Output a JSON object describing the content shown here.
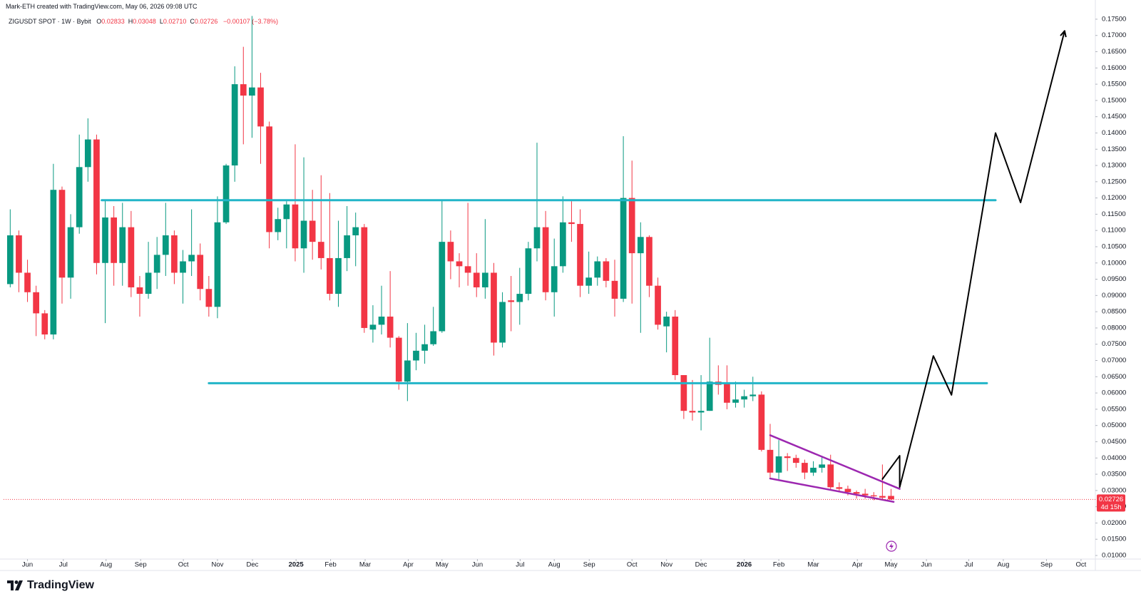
{
  "chart_data": {
    "type": "candlestick",
    "header": "Mark-ETH created with TradingView.com, May 06, 2026 09:08 UTC",
    "symbol": "ZIGUSDT SPOT · 1W · Bybit",
    "ohlc_legend": [
      {
        "key": "O",
        "value": "0.02833"
      },
      {
        "key": "H",
        "value": "0.03048"
      },
      {
        "key": "L",
        "value": "0.02710"
      },
      {
        "key": "C",
        "value": "0.02726"
      }
    ],
    "change": "−0.00107 (−3.78%)",
    "series": [
      {
        "up_color": "#089981",
        "down_color": "#f23645",
        "open": [
          0.0935,
          0.1085,
          0.097,
          0.091,
          0.0845,
          0.078,
          0.1225,
          0.0955,
          0.111,
          0.1295,
          0.138,
          0.1,
          0.114,
          0.1,
          0.111,
          0.0925,
          0.0905,
          0.097,
          0.1025,
          0.1085,
          0.097,
          0.1005,
          0.1025,
          0.092,
          0.0865,
          0.1125,
          0.13,
          0.155,
          0.1515,
          0.154,
          0.142,
          0.1095,
          0.1135,
          0.118,
          0.1045,
          0.113,
          0.1065,
          0.1015,
          0.0905,
          0.1015,
          0.1085,
          0.111,
          0.0795,
          0.081,
          0.0835,
          0.077,
          0.0635,
          0.07,
          0.073,
          0.075,
          0.079,
          0.1065,
          0.1005,
          0.099,
          0.097,
          0.0925,
          0.097,
          0.0755,
          0.0885,
          0.088,
          0.0905,
          0.1045,
          0.111,
          0.091,
          0.099,
          0.1125,
          0.112,
          0.093,
          0.0955,
          0.1005,
          0.0945,
          0.089,
          0.12,
          0.103,
          0.108,
          0.093,
          0.0805,
          0.0835,
          0.0655,
          0.0545,
          0.054,
          0.0545,
          0.0635,
          0.063,
          0.057,
          0.058,
          0.059,
          0.0595,
          0.0425,
          0.0355,
          0.0405,
          0.04,
          0.0385,
          0.0355,
          0.037,
          0.038,
          0.031,
          0.0305,
          0.0295,
          0.029,
          0.0285,
          0.0283,
          0.02833
        ],
        "high": [
          0.1165,
          0.11,
          0.101,
          0.093,
          0.0855,
          0.1305,
          0.1235,
          0.115,
          0.1395,
          0.1445,
          0.1395,
          0.1195,
          0.1175,
          0.1185,
          0.116,
          0.096,
          0.1065,
          0.108,
          0.1185,
          0.11,
          0.104,
          0.1165,
          0.106,
          0.096,
          0.1205,
          0.1305,
          0.1605,
          0.1665,
          0.176,
          0.1585,
          0.1435,
          0.117,
          0.119,
          0.1365,
          0.1325,
          0.1225,
          0.127,
          0.1215,
          0.113,
          0.1175,
          0.1155,
          0.112,
          0.087,
          0.093,
          0.0975,
          0.0775,
          0.0815,
          0.0785,
          0.081,
          0.0865,
          0.1195,
          0.11,
          0.103,
          0.1185,
          0.103,
          0.1135,
          0.1,
          0.091,
          0.096,
          0.0985,
          0.1065,
          0.137,
          0.116,
          0.1075,
          0.1205,
          0.119,
          0.1165,
          0.1035,
          0.102,
          0.1015,
          0.101,
          0.139,
          0.1315,
          0.1125,
          0.1085,
          0.0955,
          0.085,
          0.0855,
          0.0655,
          0.064,
          0.0655,
          0.077,
          0.0685,
          0.0685,
          0.0635,
          0.061,
          0.065,
          0.0605,
          0.0505,
          0.0455,
          0.0415,
          0.041,
          0.0395,
          0.039,
          0.0405,
          0.041,
          0.0325,
          0.0315,
          0.03,
          0.0305,
          0.0295,
          0.038,
          0.03048
        ],
        "low": [
          0.0925,
          0.091,
          0.088,
          0.0775,
          0.0765,
          0.0765,
          0.0875,
          0.089,
          0.109,
          0.125,
          0.0965,
          0.0815,
          0.093,
          0.093,
          0.0895,
          0.0835,
          0.089,
          0.092,
          0.096,
          0.0935,
          0.0875,
          0.096,
          0.0885,
          0.0835,
          0.083,
          0.112,
          0.125,
          0.1365,
          0.1385,
          0.1305,
          0.1045,
          0.107,
          0.1045,
          0.1005,
          0.097,
          0.101,
          0.098,
          0.0885,
          0.0865,
          0.0975,
          0.099,
          0.0785,
          0.0755,
          0.078,
          0.074,
          0.061,
          0.0575,
          0.067,
          0.069,
          0.0745,
          0.0785,
          0.095,
          0.0925,
          0.093,
          0.0895,
          0.089,
          0.0715,
          0.074,
          0.079,
          0.081,
          0.0885,
          0.1005,
          0.0885,
          0.0835,
          0.097,
          0.1065,
          0.0895,
          0.0905,
          0.093,
          0.0925,
          0.0835,
          0.088,
          0.0875,
          0.0785,
          0.0895,
          0.0795,
          0.0725,
          0.064,
          0.052,
          0.0515,
          0.0485,
          0.0545,
          0.0595,
          0.055,
          0.0555,
          0.0555,
          0.0575,
          0.042,
          0.034,
          0.0335,
          0.036,
          0.037,
          0.0335,
          0.0345,
          0.0355,
          0.03,
          0.0295,
          0.0285,
          0.0275,
          0.0275,
          0.027,
          0.027,
          0.0271
        ],
        "close": [
          0.1085,
          0.097,
          0.091,
          0.0845,
          0.078,
          0.1225,
          0.0955,
          0.111,
          0.1295,
          0.138,
          0.1,
          0.114,
          0.1,
          0.111,
          0.0925,
          0.0905,
          0.097,
          0.1025,
          0.1085,
          0.097,
          0.1005,
          0.1025,
          0.092,
          0.0865,
          0.1125,
          0.13,
          0.155,
          0.1515,
          0.154,
          0.142,
          0.1095,
          0.1135,
          0.118,
          0.1045,
          0.113,
          0.1065,
          0.1015,
          0.0905,
          0.1015,
          0.1085,
          0.111,
          0.08,
          0.081,
          0.0835,
          0.077,
          0.0635,
          0.07,
          0.073,
          0.075,
          0.079,
          0.1065,
          0.1005,
          0.099,
          0.097,
          0.0925,
          0.097,
          0.0755,
          0.088,
          0.088,
          0.0905,
          0.1045,
          0.111,
          0.091,
          0.099,
          0.1125,
          0.112,
          0.093,
          0.0955,
          0.1005,
          0.0945,
          0.089,
          0.12,
          0.103,
          0.108,
          0.093,
          0.081,
          0.0835,
          0.0655,
          0.0545,
          0.054,
          0.0545,
          0.0635,
          0.0625,
          0.057,
          0.058,
          0.059,
          0.0595,
          0.0425,
          0.0355,
          0.0405,
          0.04,
          0.0385,
          0.0355,
          0.037,
          0.038,
          0.031,
          0.0305,
          0.0295,
          0.029,
          0.0285,
          0.0282,
          0.0278,
          0.02726
        ]
      }
    ],
    "xlim": [
      -0.77,
      125.66
    ],
    "xticks": [
      {
        "value": 2.0,
        "label": "Jun"
      },
      {
        "value": 6.15,
        "label": "Jul"
      },
      {
        "value": 11.1,
        "label": "Aug"
      },
      {
        "value": 15.1,
        "label": "Sep"
      },
      {
        "value": 20.05,
        "label": "Oct"
      },
      {
        "value": 24.0,
        "label": "Nov"
      },
      {
        "value": 28.05,
        "label": "Dec"
      },
      {
        "value": 33.1,
        "label": "2025"
      },
      {
        "value": 37.1,
        "label": "Feb"
      },
      {
        "value": 41.1,
        "label": "Mar"
      },
      {
        "value": 46.1,
        "label": "Apr"
      },
      {
        "value": 50.0,
        "label": "May"
      },
      {
        "value": 54.1,
        "label": "Jun"
      },
      {
        "value": 59.05,
        "label": "Jul"
      },
      {
        "value": 63.0,
        "label": "Aug"
      },
      {
        "value": 67.05,
        "label": "Sep"
      },
      {
        "value": 72.0,
        "label": "Oct"
      },
      {
        "value": 76.0,
        "label": "Nov"
      },
      {
        "value": 80.0,
        "label": "Dec"
      },
      {
        "value": 85.0,
        "label": "2026"
      },
      {
        "value": 89.0,
        "label": "Feb"
      },
      {
        "value": 93.0,
        "label": "Mar"
      },
      {
        "value": 98.1,
        "label": "Apr"
      },
      {
        "value": 102.0,
        "label": "May"
      },
      {
        "value": 106.1,
        "label": "Jun"
      },
      {
        "value": 111.0,
        "label": "Jul"
      },
      {
        "value": 115.0,
        "label": "Aug"
      },
      {
        "value": 120.0,
        "label": "Sep"
      },
      {
        "value": 124.0,
        "label": "Oct"
      }
    ],
    "ylim": [
      0.0089,
      0.1763
    ],
    "yticks": [
      {
        "value": 0.01,
        "label": "0.01000"
      },
      {
        "value": 0.015,
        "label": "0.01500"
      },
      {
        "value": 0.02,
        "label": "0.02000"
      },
      {
        "value": 0.025,
        "label": "0.02500"
      },
      {
        "value": 0.03,
        "label": "0.03000"
      },
      {
        "value": 0.035,
        "label": "0.03500"
      },
      {
        "value": 0.04,
        "label": "0.04000"
      },
      {
        "value": 0.045,
        "label": "0.04500"
      },
      {
        "value": 0.05,
        "label": "0.05000"
      },
      {
        "value": 0.055,
        "label": "0.05500"
      },
      {
        "value": 0.06,
        "label": "0.06000"
      },
      {
        "value": 0.065,
        "label": "0.06500"
      },
      {
        "value": 0.07,
        "label": "0.07000"
      },
      {
        "value": 0.075,
        "label": "0.07500"
      },
      {
        "value": 0.08,
        "label": "0.08000"
      },
      {
        "value": 0.085,
        "label": "0.08500"
      },
      {
        "value": 0.09,
        "label": "0.09000"
      },
      {
        "value": 0.095,
        "label": "0.09500"
      },
      {
        "value": 0.1,
        "label": "0.10000"
      },
      {
        "value": 0.105,
        "label": "0.10500"
      },
      {
        "value": 0.11,
        "label": "0.11000"
      },
      {
        "value": 0.115,
        "label": "0.11500"
      },
      {
        "value": 0.12,
        "label": "0.12000"
      },
      {
        "value": 0.125,
        "label": "0.12500"
      },
      {
        "value": 0.13,
        "label": "0.13000"
      },
      {
        "value": 0.135,
        "label": "0.13500"
      },
      {
        "value": 0.14,
        "label": "0.14000"
      },
      {
        "value": 0.145,
        "label": "0.14500"
      },
      {
        "value": 0.15,
        "label": "0.15000"
      },
      {
        "value": 0.155,
        "label": "0.15500"
      },
      {
        "value": 0.16,
        "label": "0.16000"
      },
      {
        "value": 0.165,
        "label": "0.16500"
      },
      {
        "value": 0.17,
        "label": "0.17000"
      },
      {
        "value": 0.175,
        "label": "0.17500"
      }
    ],
    "grid": false,
    "last_price": {
      "value": 0.02726,
      "label": "0.02726",
      "countdown": "4d 15h",
      "color": "#f23645"
    },
    "drawings": [
      {
        "color": "#22b5c8",
        "width": 3,
        "x": [
          10.6,
          114.1
        ],
        "y": [
          0.1193,
          0.1193
        ]
      },
      {
        "color": "#22b5c8",
        "width": 3,
        "x": [
          23.0,
          113.1
        ],
        "y": [
          0.063,
          0.063
        ]
      },
      {
        "color": "#9c27b0",
        "width": 2.5,
        "x": [
          88.0,
          103.0
        ],
        "y": [
          0.047,
          0.0305
        ]
      },
      {
        "color": "#9c27b0",
        "width": 2.5,
        "x": [
          88.0,
          102.3
        ],
        "y": [
          0.0337,
          0.0265
        ]
      },
      {
        "color": "#000000",
        "width": 2,
        "arrow": true,
        "x": [
          101.0,
          103.0,
          103.0,
          106.9,
          109.0,
          114.1,
          117.0,
          122.1
        ],
        "y": [
          0.0335,
          0.0407,
          0.031,
          0.0714,
          0.0594,
          0.14,
          0.1186,
          0.1714
        ]
      }
    ],
    "brand": "TradingView"
  }
}
